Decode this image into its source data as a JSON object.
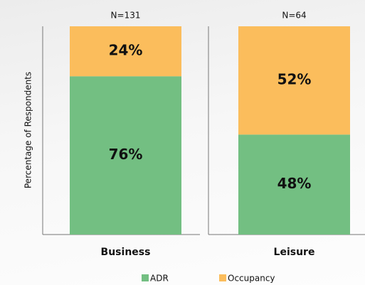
{
  "chart_data": {
    "type": "stacked_bar",
    "ylabel": "Percentage of Respondents",
    "categories": [
      "Business",
      "Leisure"
    ],
    "annotations": [
      "N=131",
      "N=64"
    ],
    "series": [
      {
        "name": "ADR",
        "color": "#73bf82",
        "values": [
          76,
          48
        ],
        "value_labels": [
          "76%",
          "48%"
        ]
      },
      {
        "name": "Occupancy",
        "color": "#fbbd5c",
        "values": [
          24,
          52
        ],
        "value_labels": [
          "24%",
          "52%"
        ]
      }
    ],
    "ylim": [
      0,
      100
    ]
  }
}
